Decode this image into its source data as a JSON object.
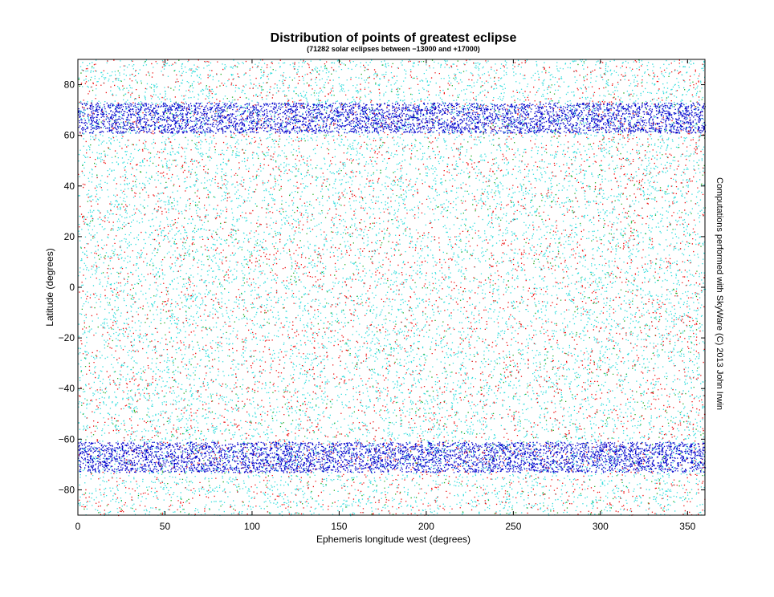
{
  "chart_data": {
    "type": "scatter",
    "title": "Distribution of points of greatest eclipse",
    "subtitle": "(71282 solar eclipses between −13000 and +17000)",
    "xlabel": "Ephemeris longitude west (degrees)",
    "ylabel": "Latitude (degrees)",
    "annotation": "Computations performed with SkyWare (C) 2013 John Irwin",
    "xlim": [
      0,
      360
    ],
    "ylim": [
      -90,
      90
    ],
    "x_ticks": [
      0,
      50,
      100,
      150,
      200,
      250,
      300,
      350
    ],
    "y_ticks": [
      {
        "value": 80,
        "label": "80"
      },
      {
        "value": 60,
        "label": "60"
      },
      {
        "value": 40,
        "label": "40"
      },
      {
        "value": 20,
        "label": "20"
      },
      {
        "value": 0,
        "label": "0"
      },
      {
        "value": -20,
        "label": "−20"
      },
      {
        "value": -40,
        "label": "−40"
      },
      {
        "value": -60,
        "label": "−60"
      },
      {
        "value": -80,
        "label": "−80"
      }
    ],
    "grid": false,
    "legend": "none",
    "colors": {
      "band": "#0000cc",
      "scatter_main": "#33dddd",
      "scatter_red": "#ee1111",
      "scatter_green": "#22aa22"
    },
    "series": [
      {
        "color": "#0000cc",
        "distribution": "dense uniform bands",
        "lat_bands": [
          [
            61,
            73
          ],
          [
            -73,
            -61
          ]
        ],
        "lon_range": [
          0,
          360
        ],
        "approx_count": 9000
      },
      {
        "color": "#33dddd",
        "distribution": "scattered",
        "lat_range": [
          -90,
          90
        ],
        "lon_range": [
          0,
          360
        ],
        "approx_count": 12000
      },
      {
        "color": "#ee1111",
        "distribution": "scattered",
        "lat_range": [
          -90,
          90
        ],
        "lon_range": [
          0,
          360
        ],
        "approx_count": 4500
      },
      {
        "color": "#22aa22",
        "distribution": "scattered",
        "lat_range": [
          -90,
          90
        ],
        "lon_range": [
          0,
          360
        ],
        "approx_count": 1200
      }
    ]
  }
}
